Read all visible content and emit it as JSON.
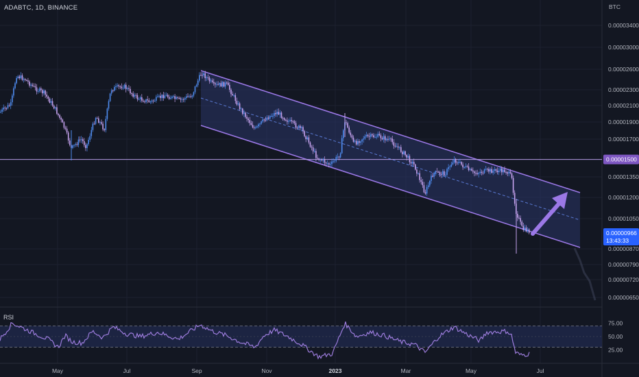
{
  "header": {
    "symbol_title": "ADABTC, 1D, BINANCE",
    "currency": "BTC"
  },
  "chart_data": {
    "type": "candlestick",
    "price_axis_ticks": [
      "0.00003400",
      "0.00003000",
      "0.00002600",
      "0.00002300",
      "0.00002100",
      "0.00001900",
      "0.00001700",
      "0.00001350",
      "0.00001200",
      "0.00001050",
      "0.00000870",
      "0.00000790",
      "0.00000720",
      "0.00000650"
    ],
    "time_axis_labels": [
      "May",
      "Jul",
      "Sep",
      "Nov",
      "2023",
      "Mar",
      "May",
      "Jul"
    ],
    "horizontal_line_label": "0.00001500",
    "current_price_label": "0.00000966",
    "countdown_label": "13:43:33",
    "colors": {
      "background": "#131722",
      "up_candle": "#4f8cf0",
      "down_candle": "#c6a3ef",
      "channel_stroke": "#9b78e6",
      "channel_fill": "#2a3566",
      "rsi_line": "#9c7cdc",
      "price_tag": "#2962ff",
      "level_tag": "#7e57c2"
    },
    "rsi": {
      "label": "RSI",
      "axis_ticks": [
        "75.00",
        "50.00",
        "25.00"
      ],
      "overbought": 70,
      "oversold": 30
    }
  }
}
